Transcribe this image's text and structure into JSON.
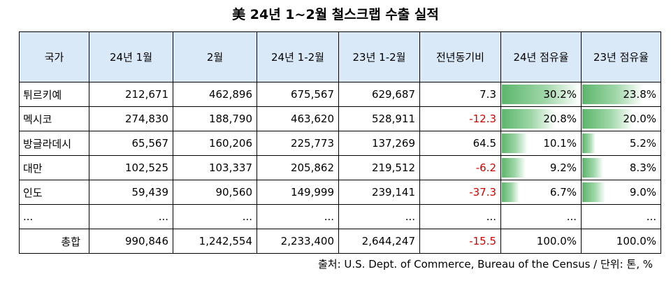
{
  "title": "美 24년 1~2월 철스크랩 수출 실적",
  "header": [
    "국가",
    "24년 1월",
    "2월",
    "24년 1-2월",
    "23년 1-2월",
    "전년동기비",
    "24년 점유율",
    "23년 점유율"
  ],
  "rows": [
    {
      "country": "튀르키예",
      "jan24": "212,671",
      "feb24": "462,896",
      "janfeb24": "675,567",
      "janfeb23": "629,687",
      "yoy": "7.3",
      "share24": "30.2%",
      "share23": "23.8%"
    },
    {
      "country": "멕시코",
      "jan24": "274,830",
      "feb24": "188,790",
      "janfeb24": "463,620",
      "janfeb23": "528,911",
      "yoy": "-12.3",
      "share24": "20.8%",
      "share23": "20.0%"
    },
    {
      "country": "방글라데시",
      "jan24": "65,567",
      "feb24": "160,206",
      "janfeb24": "225,773",
      "janfeb23": "137,269",
      "yoy": "64.5",
      "share24": "10.1%",
      "share23": "5.2%"
    },
    {
      "country": "대만",
      "jan24": "102,525",
      "feb24": "103,337",
      "janfeb24": "205,862",
      "janfeb23": "219,512",
      "yoy": "-6.2",
      "share24": "9.2%",
      "share23": "8.3%"
    },
    {
      "country": "인도",
      "jan24": "59,439",
      "feb24": "90,560",
      "janfeb24": "149,999",
      "janfeb23": "239,141",
      "yoy": "-37.3",
      "share24": "6.7%",
      "share23": "9.0%"
    }
  ],
  "ellipsis": "...",
  "total": {
    "label": "총합",
    "jan24": "990,846",
    "feb24": "1,242,554",
    "janfeb24": "2,233,400",
    "janfeb23": "2,644,247",
    "yoy": "-15.5",
    "share24": "100.0%",
    "share23": "100.0%"
  },
  "source": "출처: U.S. Dept. of Commerce, Bureau of the Census / 단위: 톤, %",
  "colors": {
    "header_bg": "#dae9f7",
    "negative": "#d40000",
    "bar": "#5cb56c"
  }
}
